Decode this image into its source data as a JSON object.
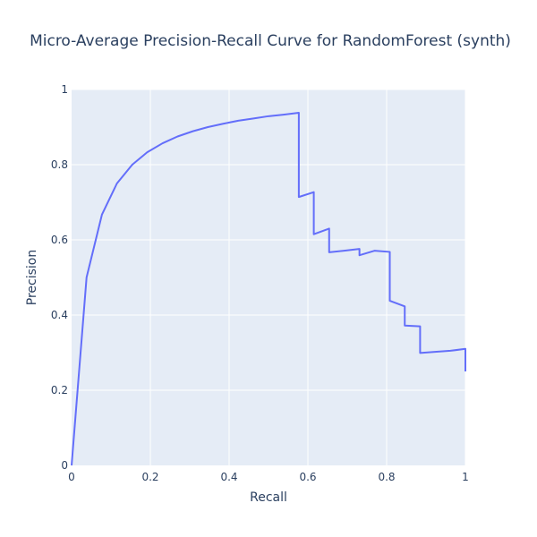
{
  "chart_data": {
    "type": "line",
    "title": "Micro-Average Precision-Recall Curve for RandomForest (synth)",
    "xlabel": "Recall",
    "ylabel": "Precision",
    "xlim": [
      0,
      1
    ],
    "ylim": [
      0,
      1
    ],
    "grid": true,
    "legend": "none",
    "x_ticks": [
      {
        "value": 0,
        "label": "0"
      },
      {
        "value": 0.2,
        "label": "0.2"
      },
      {
        "value": 0.4,
        "label": "0.4"
      },
      {
        "value": 0.6,
        "label": "0.6"
      },
      {
        "value": 0.8,
        "label": "0.8"
      },
      {
        "value": 1,
        "label": "1"
      }
    ],
    "y_ticks": [
      {
        "value": 0,
        "label": "0"
      },
      {
        "value": 0.2,
        "label": "0.2"
      },
      {
        "value": 0.4,
        "label": "0.4"
      },
      {
        "value": 0.6,
        "label": "0.6"
      },
      {
        "value": 0.8,
        "label": "0.8"
      },
      {
        "value": 1,
        "label": "1"
      }
    ],
    "colors": {
      "line": "#636efa",
      "plot_bg": "#e5ecf6",
      "grid": "#ffffff",
      "text": "#2a3f5f"
    },
    "series": [
      {
        "x": [
          0,
          0.038,
          0.077,
          0.115,
          0.154,
          0.192,
          0.231,
          0.269,
          0.308,
          0.346,
          0.385,
          0.423,
          0.462,
          0.5,
          0.538,
          0.577,
          0.577,
          0.615,
          0.615,
          0.654,
          0.654,
          0.692,
          0.731,
          0.731,
          0.769,
          0.808,
          0.808,
          0.846,
          0.846,
          0.885,
          0.885,
          0.923,
          0.962,
          1.0,
          1.0
        ],
        "y": [
          0,
          0.5,
          0.667,
          0.75,
          0.8,
          0.833,
          0.857,
          0.875,
          0.889,
          0.9,
          0.909,
          0.917,
          0.923,
          0.929,
          0.933,
          0.938,
          0.714,
          0.727,
          0.615,
          0.63,
          0.567,
          0.571,
          0.576,
          0.559,
          0.571,
          0.568,
          0.438,
          0.423,
          0.372,
          0.37,
          0.299,
          0.302,
          0.305,
          0.31,
          0.25
        ]
      }
    ]
  }
}
